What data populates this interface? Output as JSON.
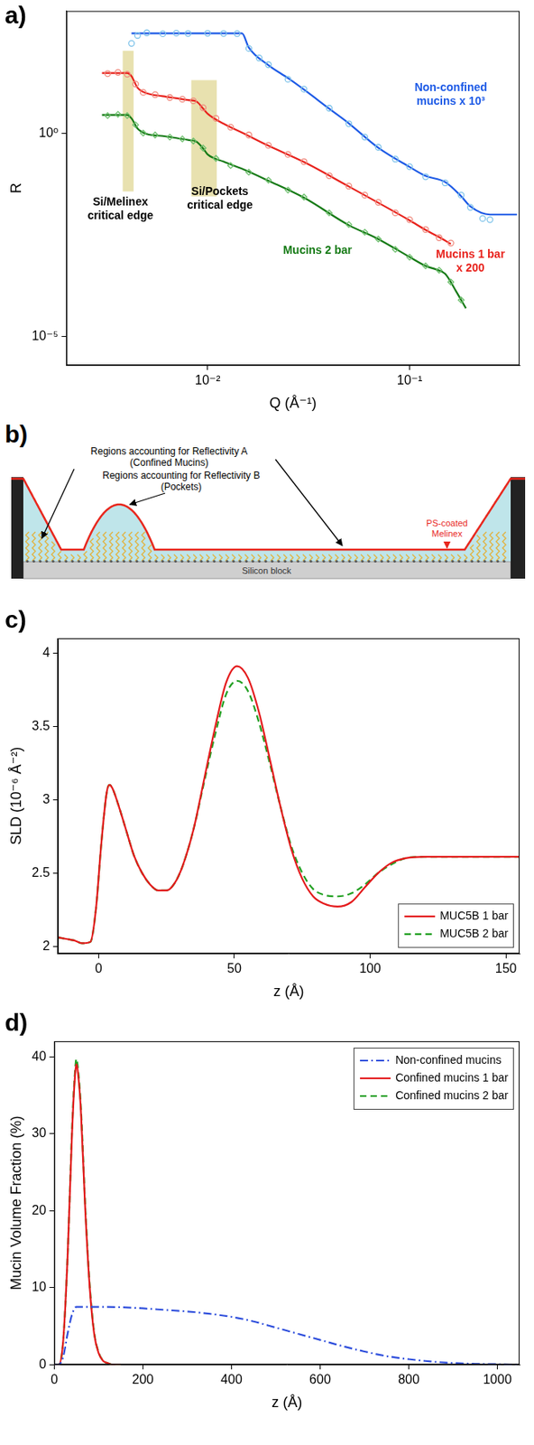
{
  "chart_data": [
    {
      "type": "line",
      "panel_label": "a)",
      "x_label": "Q (Å⁻¹)",
      "y_label": "R",
      "log": true,
      "grid": false,
      "xlim": [
        0.002,
        0.35
      ],
      "ylim": [
        2e-06,
        1000
      ],
      "xticks": [
        {
          "value": 0.01,
          "label": "10⁻²"
        },
        {
          "value": 0.1,
          "label": "10⁻¹"
        }
      ],
      "yticks": [
        {
          "value": 1e-05,
          "label": "10⁻⁵"
        },
        {
          "value": 1,
          "label": "10⁰"
        }
      ],
      "series": [
        {
          "color": "#7ec3ea",
          "marker": "circle",
          "line_style": "none",
          "x": [
            0.0042,
            0.0045,
            0.005,
            0.006,
            0.007,
            0.008,
            0.01,
            0.012,
            0.014,
            0.016,
            0.018,
            0.02,
            0.025,
            0.03,
            0.04,
            0.05,
            0.06,
            0.07,
            0.085,
            0.1,
            0.12,
            0.15,
            0.18,
            0.2,
            0.23,
            0.25
          ],
          "values": [
            160,
            250,
            290,
            275,
            285,
            280,
            283,
            280,
            278,
            120,
            70,
            48,
            21,
            12,
            4.1,
            1.7,
            0.8,
            0.45,
            0.23,
            0.15,
            0.085,
            0.06,
            0.03,
            0.015,
            0.008,
            0.0075
          ]
        },
        {
          "color": "#1d5ae6",
          "line_style": "solid",
          "x": [
            0.0042,
            0.006,
            0.008,
            0.01,
            0.012,
            0.014,
            0.0148,
            0.016,
            0.02,
            0.025,
            0.03,
            0.04,
            0.05,
            0.07,
            0.1,
            0.12,
            0.15,
            0.18,
            0.2,
            0.25,
            0.3,
            0.34
          ],
          "values": [
            282,
            282,
            282,
            282,
            282,
            282,
            282,
            126,
            46.8,
            22.4,
            11.7,
            3.98,
            1.74,
            0.437,
            0.148,
            0.0891,
            0.0631,
            0.0282,
            0.0158,
            0.01,
            0.01,
            0.01
          ]
        },
        {
          "color": "#f08a7e",
          "marker": "circle",
          "line_style": "none",
          "x": [
            0.0032,
            0.0036,
            0.004,
            0.0044,
            0.0048,
            0.0055,
            0.0065,
            0.0075,
            0.0085,
            0.0095,
            0.011,
            0.013,
            0.016,
            0.02,
            0.025,
            0.03,
            0.04,
            0.05,
            0.06,
            0.07,
            0.085,
            0.1,
            0.12,
            0.14,
            0.16
          ],
          "values": [
            29,
            31,
            28,
            16,
            10,
            8.8,
            7.5,
            6.8,
            6.2,
            4.2,
            2.3,
            1.4,
            0.9,
            0.5,
            0.3,
            0.2,
            0.09,
            0.05,
            0.03,
            0.02,
            0.011,
            0.0075,
            0.0043,
            0.0027,
            0.002
          ]
        },
        {
          "color": "#e8221c",
          "line_style": "solid",
          "x": [
            0.003,
            0.0035,
            0.004,
            0.0042,
            0.0045,
            0.005,
            0.006,
            0.007,
            0.008,
            0.0088,
            0.0095,
            0.01,
            0.012,
            0.015,
            0.02,
            0.03,
            0.05,
            0.07,
            0.1,
            0.12,
            0.14,
            0.16
          ],
          "values": [
            30,
            30,
            30,
            25,
            13,
            9.5,
            8.1,
            7.2,
            6.5,
            6,
            4,
            3,
            1.7,
            1,
            0.49,
            0.195,
            0.049,
            0.0195,
            0.0072,
            0.0042,
            0.0028,
            0.0019
          ]
        },
        {
          "color": "#6cbf6c",
          "marker": "diamond",
          "line_style": "none",
          "x": [
            0.0032,
            0.0036,
            0.004,
            0.0044,
            0.0048,
            0.0055,
            0.0065,
            0.0075,
            0.0085,
            0.0095,
            0.011,
            0.013,
            0.016,
            0.02,
            0.025,
            0.03,
            0.04,
            0.05,
            0.06,
            0.07,
            0.085,
            0.1,
            0.12,
            0.14,
            0.16,
            0.18
          ],
          "values": [
            2.7,
            2.9,
            2.7,
            1.6,
            1.0,
            0.9,
            0.8,
            0.72,
            0.64,
            0.43,
            0.24,
            0.16,
            0.11,
            0.07,
            0.04,
            0.027,
            0.011,
            0.0057,
            0.0037,
            0.0025,
            0.0014,
            0.0009,
            0.00055,
            0.00043,
            0.00022,
            8e-05
          ]
        },
        {
          "color": "#157a15",
          "line_style": "solid",
          "x": [
            0.003,
            0.0035,
            0.004,
            0.0042,
            0.0045,
            0.005,
            0.006,
            0.007,
            0.008,
            0.0088,
            0.0095,
            0.01,
            0.012,
            0.015,
            0.02,
            0.03,
            0.05,
            0.07,
            0.1,
            0.12,
            0.135,
            0.15,
            0.17,
            0.19
          ],
          "values": [
            2.8,
            2.8,
            2.8,
            2.3,
            1.3,
            0.95,
            0.85,
            0.76,
            0.68,
            0.62,
            0.42,
            0.3,
            0.2,
            0.13,
            0.068,
            0.026,
            0.0055,
            0.0025,
            0.00091,
            0.00055,
            0.00045,
            0.00035,
            0.00013,
            5e-05
          ]
        }
      ],
      "shaded_regions": [
        {
          "x": [
            0.0038,
            0.0043
          ],
          "y": [
            0.037,
            105
          ]
        },
        {
          "x": [
            0.0083,
            0.0111
          ],
          "y": [
            0.028,
            20
          ]
        }
      ],
      "annotations": [
        {
          "text": "Non-confined\nmucins x 10³",
          "x": 0.16,
          "y": 18,
          "color": "#1d5ae6"
        },
        {
          "text": "Mucins 1 bar\nx 200",
          "x": 0.2,
          "y": 0.00141,
          "color": "#e8221c"
        },
        {
          "text": "Mucins 2 bar",
          "x": 0.035,
          "y": 0.00178,
          "color": "#157a15"
        },
        {
          "text": "Si/Melinex\ncritical edge",
          "x": 0.0037,
          "y": 0.028,
          "color": "#000000"
        },
        {
          "text": "Si/Pockets\ncritical edge",
          "x": 0.0115,
          "y": 0.05,
          "color": "#000000"
        }
      ]
    },
    {
      "type": "line",
      "panel_label": "c)",
      "x_label": "z (Å)",
      "y_label": "SLD (10⁻⁶ Å⁻²)",
      "grid": false,
      "legend": "lower right",
      "xlim": [
        -15,
        155
      ],
      "ylim": [
        1.95,
        4.1
      ],
      "xticks": [
        0,
        50,
        100,
        150
      ],
      "yticks": [
        2,
        2.5,
        3,
        3.5,
        4
      ],
      "x": [
        -15,
        -12,
        -9,
        -6,
        -3,
        -1,
        1,
        3,
        4,
        5,
        7,
        10,
        13,
        16,
        19,
        22,
        25,
        28,
        31,
        35,
        39,
        43,
        47,
        51,
        55,
        59,
        63,
        67,
        71,
        75,
        79,
        83,
        88,
        93,
        98,
        103,
        108,
        113,
        120,
        130,
        140,
        150,
        155
      ],
      "series": [
        {
          "name": "MUC5B 1 bar",
          "color": "#e41a1c",
          "line_style": "solid",
          "values": [
            2.06,
            2.05,
            2.04,
            2.02,
            2.03,
            2.25,
            2.7,
            3.05,
            3.1,
            3.08,
            2.98,
            2.8,
            2.62,
            2.5,
            2.42,
            2.38,
            2.38,
            2.43,
            2.55,
            2.8,
            3.15,
            3.5,
            3.8,
            3.91,
            3.83,
            3.6,
            3.28,
            2.95,
            2.66,
            2.46,
            2.34,
            2.29,
            2.27,
            2.3,
            2.4,
            2.5,
            2.57,
            2.6,
            2.61,
            2.61,
            2.61,
            2.61,
            2.61
          ]
        },
        {
          "name": "MUC5B 2 bar",
          "color": "#22a022",
          "line_style": "dashed",
          "values": [
            2.06,
            2.05,
            2.04,
            2.02,
            2.03,
            2.25,
            2.7,
            3.05,
            3.1,
            3.08,
            2.98,
            2.8,
            2.62,
            2.5,
            2.42,
            2.38,
            2.38,
            2.43,
            2.55,
            2.8,
            3.13,
            3.45,
            3.72,
            3.81,
            3.74,
            3.53,
            3.25,
            2.95,
            2.68,
            2.5,
            2.39,
            2.35,
            2.34,
            2.36,
            2.42,
            2.5,
            2.56,
            2.6,
            2.61,
            2.61,
            2.61,
            2.61,
            2.61
          ]
        }
      ]
    },
    {
      "type": "line",
      "panel_label": "d)",
      "x_label": "z (Å)",
      "y_label": "Mucin Volume Fraction (%)",
      "grid": false,
      "legend": "upper right",
      "xlim": [
        0,
        1050
      ],
      "ylim": [
        0,
        42
      ],
      "xticks": [
        0,
        200,
        400,
        600,
        800,
        1000
      ],
      "yticks": [
        0,
        10,
        20,
        30,
        40
      ],
      "series": [
        {
          "name": "Non-confined mucins",
          "color": "#2f4fdc",
          "line_style": "dashdot",
          "x": [
            0,
            10,
            20,
            30,
            40,
            50,
            100,
            150,
            200,
            250,
            300,
            350,
            400,
            450,
            500,
            550,
            600,
            650,
            700,
            750,
            800,
            850,
            900,
            950,
            1000,
            1050
          ],
          "values": [
            0,
            0,
            1,
            4,
            6.5,
            7.5,
            7.5,
            7.45,
            7.3,
            7.1,
            6.9,
            6.6,
            6.2,
            5.6,
            4.8,
            4,
            3.2,
            2.4,
            1.7,
            1.1,
            0.7,
            0.4,
            0.2,
            0.1,
            0.05,
            0
          ]
        },
        {
          "name": "Confined mucins 1 bar",
          "color": "#e41a1c",
          "line_style": "solid",
          "x": [
            0,
            10,
            20,
            30,
            40,
            45,
            50,
            55,
            60,
            70,
            80,
            90,
            100,
            110,
            120,
            130,
            150
          ],
          "values": [
            0,
            0,
            3,
            14,
            30,
            36,
            39,
            37,
            33,
            20,
            10,
            4,
            1.5,
            0.5,
            0.2,
            0,
            0
          ]
        },
        {
          "name": "Confined mucins 2 bar",
          "color": "#22a022",
          "line_style": "dashed",
          "x": [
            0,
            10,
            20,
            30,
            40,
            45,
            50,
            55,
            60,
            70,
            80,
            90,
            100,
            110,
            120,
            130,
            150
          ],
          "values": [
            0,
            0,
            3,
            14,
            30.5,
            36.5,
            39.7,
            37.5,
            33.5,
            20.5,
            10.3,
            4.2,
            1.6,
            0.5,
            0.2,
            0,
            0
          ]
        }
      ]
    }
  ],
  "diagram": {
    "panel_label": "b)",
    "region_a_label": "Regions accounting for Reflectivity A\n(Confined Mucins)",
    "region_b_label": "Regions accounting for Reflectivity B\n(Pockets)",
    "top_layer_label": "PS-coated\nMelinex",
    "substrate_label": "Silicon block"
  }
}
